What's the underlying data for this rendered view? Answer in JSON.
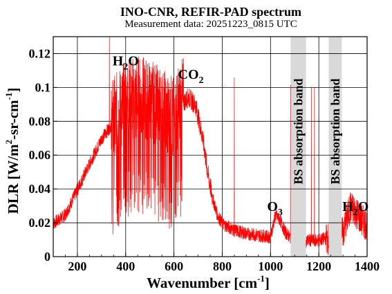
{
  "chart_data": {
    "type": "line",
    "title": "INO-CNR, REFIR-PAD spectrum",
    "subtitle": "Measurement data: 20251223_0815 UTC",
    "xlabel": {
      "text": "Wavenumber [cm",
      "sup": "-1",
      "after": "]"
    },
    "ylabel": {
      "pre": "DLR [W/m",
      "sup1": "2",
      "mid": "-sr-cm",
      "sup2": "-1",
      "after": "]"
    },
    "xlim": [
      100,
      1400
    ],
    "ylim": [
      0,
      0.13
    ],
    "x_ticks": [
      200,
      400,
      600,
      800,
      1000,
      1200,
      1400
    ],
    "x_tick_labels": [
      "200",
      "400",
      "600",
      "800",
      "1000",
      "1200",
      "1400"
    ],
    "y_ticks": [
      0,
      0.02,
      0.04,
      0.06,
      0.08,
      0.1,
      0.12
    ],
    "y_tick_labels": [
      "0",
      "0.02",
      "0.04",
      "0.06",
      "0.08",
      "0.1",
      "0.12"
    ],
    "grid": true,
    "line_color": "#ff0000",
    "band_color": "#d9d9d9",
    "series": [
      {
        "x": [
          100,
          150,
          200,
          250,
          300,
          350,
          400,
          450,
          500,
          550,
          600,
          630,
          660,
          690,
          720,
          740,
          760,
          780,
          800,
          850,
          900,
          950,
          1000,
          1020,
          1040,
          1060,
          1080,
          1100,
          1150,
          1200,
          1250,
          1300,
          1330,
          1350,
          1380,
          1400
        ],
        "values": [
          0.02,
          0.025,
          0.04,
          0.055,
          0.07,
          0.08,
          0.09,
          0.093,
          0.09,
          0.085,
          0.08,
          0.09,
          0.095,
          0.09,
          0.07,
          0.05,
          0.035,
          0.025,
          0.02,
          0.016,
          0.014,
          0.013,
          0.012,
          0.025,
          0.022,
          0.015,
          0.012,
          0.01,
          0.01,
          0.01,
          0.012,
          0.015,
          0.03,
          0.028,
          0.022,
          0.02
        ]
      }
    ],
    "bands": [
      {
        "x0": 1083,
        "x1": 1147,
        "label": "BS absorption band"
      },
      {
        "x0": 1241,
        "x1": 1295,
        "label": "BS absorption band"
      }
    ],
    "annotations": [
      {
        "base": "H",
        "sub": "2",
        "tail": "O",
        "x": 400,
        "y": 0.113
      },
      {
        "base": "CO",
        "sub": "2",
        "tail": "",
        "x": 670,
        "y": 0.105
      },
      {
        "base": "O",
        "sub": "3",
        "tail": "",
        "x": 1018,
        "y": 0.027
      },
      {
        "base": "H",
        "sub": "2",
        "tail": "O",
        "x": 1352,
        "y": 0.027
      }
    ]
  }
}
